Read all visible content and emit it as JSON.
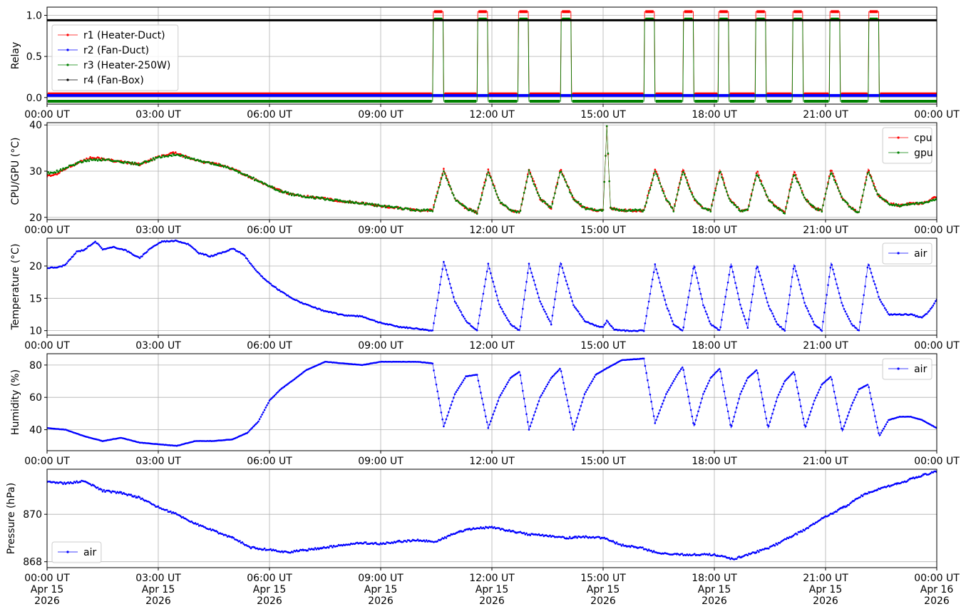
{
  "x_ticks": [
    "00:00 UT",
    "03:00 UT",
    "06:00 UT",
    "09:00 UT",
    "12:00 UT",
    "15:00 UT",
    "18:00 UT",
    "21:00 UT",
    "00:00 UT"
  ],
  "x_ticks_bottom_date": [
    "Apr 15",
    "Apr 15",
    "Apr 15",
    "Apr 15",
    "Apr 15",
    "Apr 15",
    "Apr 15",
    "Apr 15",
    "Apr 16"
  ],
  "x_ticks_bottom_year": [
    "2026",
    "2026",
    "2026",
    "2026",
    "2026",
    "2026",
    "2026",
    "2026",
    "2026"
  ],
  "chart_data": [
    {
      "type": "line",
      "ylabel": "Relay",
      "x_unit": "hours UT from Apr 15 2026 00:00",
      "xlim": [
        0,
        24
      ],
      "ylim": [
        -0.08,
        1.1
      ],
      "yticks": [
        0.0,
        0.5,
        1.0
      ],
      "ytick_labels": [
        "0.0",
        "0.5",
        "1.0"
      ],
      "legend_position": "upper-left",
      "heater_on_periods_hours": [
        [
          10.4,
          10.7
        ],
        [
          11.6,
          11.9
        ],
        [
          12.7,
          13.0
        ],
        [
          13.85,
          14.15
        ],
        [
          16.1,
          16.4
        ],
        [
          17.15,
          17.45
        ],
        [
          18.1,
          18.4
        ],
        [
          19.1,
          19.4
        ],
        [
          20.1,
          20.4
        ],
        [
          21.1,
          21.4
        ],
        [
          22.15,
          22.45
        ]
      ],
      "series": [
        {
          "name": "r1 (Heater-Duct)",
          "color": "#ff0000",
          "off_value": 0.0,
          "on_value": 1.0
        },
        {
          "name": "r2 (Fan-Duct)",
          "color": "#0000ff",
          "constant_value": 0.0
        },
        {
          "name": "r3 (Heater-250W)",
          "color": "#008000",
          "off_value": 0.0,
          "on_value": 1.0
        },
        {
          "name": "r4 (Fan-Box)",
          "color": "#000000",
          "constant_value": 1.0
        }
      ]
    },
    {
      "type": "line",
      "ylabel": "CPU/GPU (°C)",
      "xlim": [
        0,
        24
      ],
      "ylim": [
        19.5,
        40.5
      ],
      "yticks": [
        20,
        30,
        40
      ],
      "legend_position": "upper-right",
      "x": [
        0,
        0.3,
        0.6,
        0.9,
        1.2,
        1.6,
        2.0,
        2.5,
        3.0,
        3.4,
        3.8,
        4.2,
        4.6,
        5.0,
        5.4,
        5.8,
        6.2,
        6.6,
        7.0,
        7.5,
        8.0,
        8.5,
        9.0,
        9.5,
        10.0,
        10.4,
        10.7,
        11.0,
        11.3,
        11.6,
        11.9,
        12.2,
        12.5,
        12.75,
        13.0,
        13.3,
        13.6,
        13.85,
        14.2,
        14.5,
        14.8,
        15.0,
        15.1,
        15.2,
        15.5,
        15.8,
        16.1,
        16.4,
        16.7,
        16.9,
        17.15,
        17.45,
        17.7,
        17.9,
        18.15,
        18.4,
        18.7,
        18.9,
        19.15,
        19.45,
        19.7,
        19.9,
        20.15,
        20.45,
        20.7,
        20.9,
        21.15,
        21.45,
        21.7,
        21.9,
        22.15,
        22.4,
        22.7,
        23.0,
        23.3,
        23.6,
        24.0
      ],
      "series": [
        {
          "name": "cpu",
          "color": "#ff0000",
          "values": [
            29,
            29.5,
            31,
            32,
            33,
            32.5,
            32,
            31.5,
            33,
            34,
            33,
            32,
            31.5,
            30.5,
            29,
            27.5,
            26,
            25,
            24.5,
            24,
            23.5,
            23,
            22.5,
            22,
            21.5,
            21.5,
            30.5,
            24,
            22,
            21,
            30.5,
            23.5,
            21.5,
            21,
            30.5,
            24,
            22,
            30.5,
            24,
            22,
            21.5,
            21.5,
            39.5,
            22,
            21.5,
            21.5,
            21.5,
            30.5,
            24,
            21.5,
            30.5,
            24,
            22,
            21.5,
            30.5,
            24,
            21.5,
            21.5,
            30,
            24,
            22,
            21,
            30,
            24,
            22,
            21.5,
            30.5,
            24,
            22,
            21,
            30.5,
            25,
            23,
            22.5,
            23,
            23,
            24.5
          ]
        },
        {
          "name": "gpu",
          "color": "#008000",
          "values": [
            29.5,
            30,
            31,
            32,
            32.5,
            32.5,
            32,
            31.5,
            33,
            33.5,
            33,
            32,
            31.5,
            30.5,
            29,
            27.5,
            26,
            25,
            24.5,
            24,
            23.5,
            23,
            22.5,
            22,
            21.5,
            21.5,
            30,
            24,
            22,
            21,
            30,
            23.5,
            21.5,
            21,
            30,
            24,
            22,
            30,
            24,
            22,
            21.5,
            21.5,
            39.5,
            22,
            21.5,
            21.5,
            21.5,
            30,
            24,
            21.5,
            30,
            24,
            22,
            21.5,
            30,
            24,
            21.5,
            21.5,
            29.5,
            24,
            22,
            21,
            29.5,
            24,
            22,
            21.5,
            30,
            24,
            22,
            21,
            30,
            25,
            23,
            22.5,
            23,
            23,
            24
          ]
        }
      ]
    },
    {
      "type": "line",
      "ylabel": "Temperature (°C)",
      "xlim": [
        0,
        24
      ],
      "ylim": [
        9.3,
        24.3
      ],
      "yticks": [
        10,
        15,
        20
      ],
      "legend_position": "upper-right",
      "x": [
        0,
        0.3,
        0.5,
        0.8,
        1.0,
        1.3,
        1.5,
        1.8,
        2.1,
        2.5,
        2.8,
        3.1,
        3.5,
        3.8,
        4.1,
        4.4,
        4.7,
        5.0,
        5.3,
        5.6,
        5.9,
        6.2,
        6.6,
        7.0,
        7.5,
        8.0,
        8.5,
        9.0,
        9.5,
        10.0,
        10.4,
        10.7,
        11.0,
        11.3,
        11.6,
        11.9,
        12.2,
        12.5,
        12.75,
        13.0,
        13.3,
        13.6,
        13.85,
        14.2,
        14.5,
        14.8,
        15.0,
        15.1,
        15.3,
        15.6,
        16.1,
        16.4,
        16.7,
        16.9,
        17.15,
        17.45,
        17.7,
        17.9,
        18.15,
        18.45,
        18.7,
        18.9,
        19.15,
        19.45,
        19.7,
        19.9,
        20.15,
        20.45,
        20.7,
        20.9,
        21.15,
        21.45,
        21.7,
        21.9,
        22.15,
        22.45,
        22.7,
        23.0,
        23.3,
        23.6,
        23.8,
        24.0
      ],
      "series": [
        {
          "name": "air",
          "color": "#0000ff",
          "values": [
            19.7,
            19.8,
            20.2,
            22.2,
            22.5,
            23.8,
            22.6,
            22.9,
            22.5,
            21.2,
            22.8,
            23.8,
            23.9,
            23.4,
            22.0,
            21.5,
            22.0,
            22.7,
            21.8,
            19.5,
            17.8,
            16.5,
            15.0,
            14.0,
            13.0,
            12.4,
            12.2,
            11.2,
            10.6,
            10.3,
            10.0,
            20.7,
            14.5,
            11.5,
            10.0,
            20.3,
            14.0,
            11.0,
            10.0,
            20.3,
            14.5,
            11.0,
            20.6,
            14.0,
            11.5,
            10.8,
            10.5,
            11.5,
            10.2,
            10.0,
            10.0,
            20.2,
            14.0,
            11.0,
            10.0,
            20.2,
            14.0,
            11.0,
            10.0,
            20.4,
            14.0,
            10.5,
            20.2,
            14.0,
            11.0,
            10.0,
            20.3,
            14.0,
            11.0,
            10.0,
            20.5,
            14.0,
            11.0,
            10.0,
            20.4,
            15.0,
            12.5,
            12.5,
            12.5,
            12.0,
            13.0,
            14.8
          ]
        }
      ]
    },
    {
      "type": "line",
      "ylabel": "Humidity (%)",
      "xlim": [
        0,
        24
      ],
      "ylim": [
        27,
        87
      ],
      "yticks": [
        40,
        60,
        80
      ],
      "legend_position": "upper-right",
      "x": [
        0,
        0.5,
        1.0,
        1.5,
        2.0,
        2.5,
        3.0,
        3.5,
        4.0,
        4.5,
        5.0,
        5.4,
        5.7,
        6.0,
        6.3,
        6.6,
        7.0,
        7.5,
        8.0,
        8.5,
        9.0,
        9.5,
        10.0,
        10.4,
        10.7,
        11.0,
        11.3,
        11.6,
        11.9,
        12.2,
        12.5,
        12.75,
        13.0,
        13.3,
        13.6,
        13.85,
        14.2,
        14.5,
        14.8,
        15.1,
        15.5,
        16.1,
        16.4,
        16.7,
        17.0,
        17.15,
        17.45,
        17.7,
        17.9,
        18.15,
        18.45,
        18.7,
        18.9,
        19.15,
        19.45,
        19.7,
        19.9,
        20.15,
        20.45,
        20.7,
        20.9,
        21.15,
        21.45,
        21.7,
        21.9,
        22.15,
        22.45,
        22.7,
        23.0,
        23.3,
        23.6,
        24.0
      ],
      "series": [
        {
          "name": "air",
          "color": "#0000ff",
          "values": [
            41,
            40,
            36,
            33,
            35,
            32,
            31,
            30,
            33,
            33,
            34,
            38,
            45,
            58,
            65,
            70,
            77,
            82,
            81,
            80,
            82,
            82,
            82,
            81,
            42,
            62,
            73,
            74,
            41,
            60,
            72,
            76,
            40,
            60,
            72,
            78,
            40,
            62,
            74,
            78,
            83,
            84,
            44,
            62,
            74,
            79,
            42,
            62,
            72,
            78,
            41,
            62,
            72,
            77,
            41,
            60,
            70,
            76,
            41,
            58,
            68,
            73,
            39,
            55,
            65,
            68,
            36,
            46,
            48,
            48,
            46,
            41
          ]
        }
      ]
    },
    {
      "type": "line",
      "ylabel": "Pressure (hPa)",
      "xlim": [
        0,
        24
      ],
      "ylim": [
        867.75,
        871.9
      ],
      "yticks": [
        868,
        870
      ],
      "legend_position": "lower-left",
      "x": [
        0,
        0.5,
        1.0,
        1.5,
        2.0,
        2.5,
        3.0,
        3.5,
        4.0,
        4.5,
        5.0,
        5.5,
        6.0,
        6.5,
        7.0,
        7.5,
        8.0,
        8.5,
        9.0,
        9.5,
        10.0,
        10.5,
        11.0,
        11.5,
        12.0,
        12.5,
        13.0,
        13.5,
        14.0,
        14.5,
        15.0,
        15.5,
        16.0,
        16.5,
        17.0,
        17.5,
        18.0,
        18.5,
        19.0,
        19.5,
        20.0,
        20.5,
        21.0,
        21.5,
        22.0,
        22.5,
        23.0,
        23.5,
        24.0
      ],
      "series": [
        {
          "name": "air",
          "color": "#0000ff",
          "values": [
            871.4,
            871.3,
            871.4,
            871.0,
            870.9,
            870.7,
            870.3,
            870.0,
            869.6,
            869.3,
            869.0,
            868.6,
            868.5,
            868.4,
            868.5,
            868.6,
            868.7,
            868.8,
            868.75,
            868.85,
            868.9,
            868.85,
            869.2,
            869.4,
            869.45,
            869.3,
            869.15,
            869.1,
            869.0,
            869.05,
            869.0,
            868.7,
            868.6,
            868.35,
            868.3,
            868.3,
            868.3,
            868.1,
            868.35,
            868.6,
            869.0,
            869.4,
            869.9,
            870.3,
            870.8,
            871.1,
            871.3,
            871.6,
            871.8
          ]
        }
      ]
    }
  ]
}
